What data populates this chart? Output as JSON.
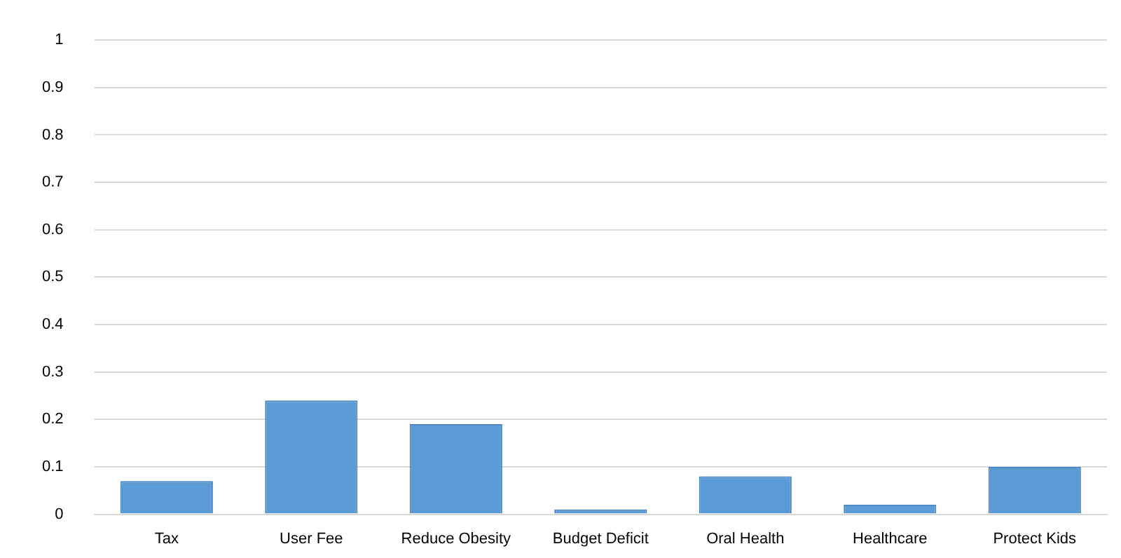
{
  "chart_data": {
    "type": "bar",
    "categories": [
      "Tax",
      "User Fee",
      "Reduce Obesity",
      "Budget Deficit",
      "Oral Health",
      "Healthcare",
      "Protect Kids"
    ],
    "values": [
      0.07,
      0.24,
      0.19,
      0.01,
      0.08,
      0.02,
      0.1
    ],
    "color": "#5b9bd5",
    "ylim": [
      0,
      1
    ],
    "yticks": [
      0,
      0.1,
      0.2,
      0.3,
      0.4,
      0.5,
      0.6,
      0.7,
      0.8,
      0.9,
      1
    ],
    "grid": "y",
    "legend": false
  }
}
